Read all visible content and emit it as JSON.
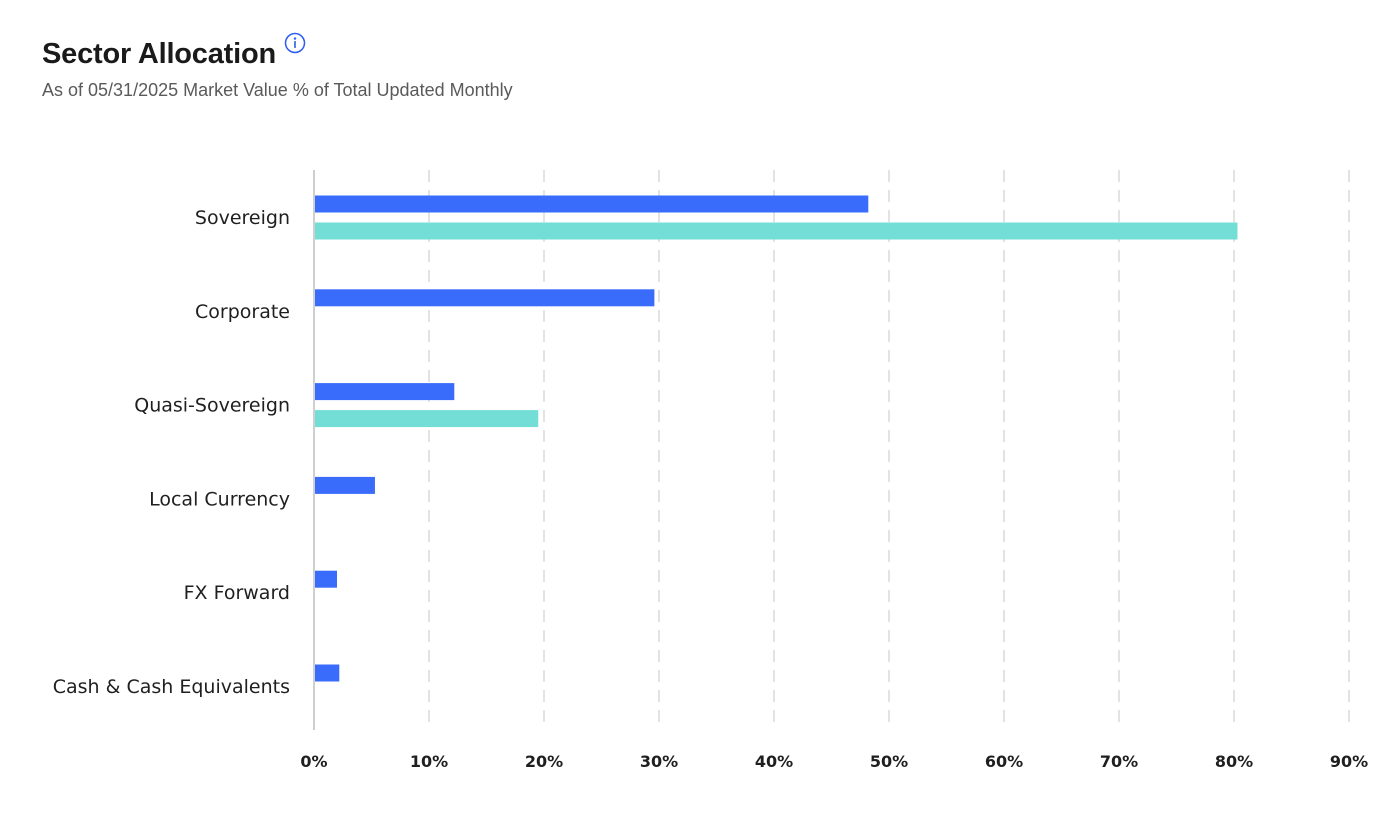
{
  "header": {
    "title": "Sector Allocation",
    "subtitle": "As of 05/31/2025 Market Value % of Total Updated Monthly",
    "info_icon": "info-circle-icon"
  },
  "colors": {
    "series_primary": "#3a6cfb",
    "series_secondary": "#72ded6",
    "grid": "#e3e3e3",
    "axis": "#cfcfcf",
    "info_icon": "#2b5bf0"
  },
  "chart_data": {
    "type": "bar",
    "orientation": "horizontal",
    "categories": [
      "Sovereign",
      "Corporate",
      "Quasi-Sovereign",
      "Local Currency",
      "FX Forward",
      "Cash & Cash Equivalents"
    ],
    "series": [
      {
        "values": [
          48.2,
          29.6,
          12.2,
          5.3,
          2.0,
          2.2
        ]
      },
      {
        "values": [
          80.3,
          0,
          19.5,
          0,
          0,
          0
        ]
      }
    ],
    "x_ticks": [
      "0%",
      "10%",
      "20%",
      "30%",
      "40%",
      "50%",
      "60%",
      "70%",
      "80%",
      "90%"
    ],
    "xlim": [
      0,
      90
    ],
    "grid": "vertical-dashed",
    "legend": "none"
  }
}
